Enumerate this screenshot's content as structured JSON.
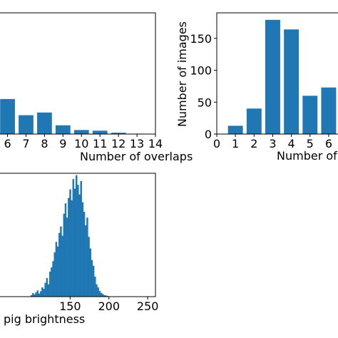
{
  "colors": {
    "bar": "#1f77b4",
    "axis": "#000000",
    "background": "#ffffff"
  },
  "chart_data": [
    {
      "id": "overlaps",
      "type": "bar",
      "xlabel": "Number of overlaps",
      "ylabel": "",
      "categories": [
        "6",
        "7",
        "8",
        "9",
        "10",
        "11",
        "12",
        "13",
        "14"
      ],
      "x": [
        6,
        7,
        8,
        9,
        10,
        11,
        12,
        13,
        14
      ],
      "values": [
        52,
        28,
        32,
        13,
        6,
        5,
        2,
        0.6,
        0
      ],
      "xlim": [
        5.4,
        14
      ],
      "ylim": [
        0,
        180
      ],
      "xticks": [
        "6",
        "7",
        "8",
        "9",
        "10",
        "11",
        "12",
        "13",
        "14"
      ],
      "grid": false
    },
    {
      "id": "images",
      "type": "bar",
      "xlabel": "Number of",
      "ylabel": "Number of images",
      "categories": [
        "0",
        "1",
        "2",
        "3",
        "4",
        "5",
        "6"
      ],
      "x": [
        0,
        1,
        2,
        3,
        4,
        5,
        6
      ],
      "values": [
        0,
        13,
        40,
        179,
        164,
        60,
        73
      ],
      "xlim": [
        0,
        6.5
      ],
      "ylim": [
        0,
        190
      ],
      "xticks": [
        "0",
        "1",
        "2",
        "3",
        "4",
        "5",
        "6"
      ],
      "yticks": [
        "0",
        "50",
        "100",
        "150"
      ],
      "grid": false
    },
    {
      "id": "brightness",
      "type": "bar",
      "xlabel": "pig brightness",
      "ylabel": "",
      "xlim": [
        55,
        260
      ],
      "ylim": [
        0,
        32
      ],
      "xticks": [
        "150",
        "200",
        "250"
      ],
      "grid": false,
      "x": [
        100,
        102,
        104,
        106,
        108,
        110,
        112,
        114,
        116,
        118,
        120,
        122,
        124,
        126,
        128,
        130,
        132,
        134,
        136,
        138,
        140,
        142,
        144,
        146,
        148,
        150,
        152,
        154,
        156,
        158,
        160,
        162,
        164,
        166,
        168,
        170,
        172,
        174,
        176,
        178,
        180,
        182,
        184,
        186,
        188,
        190,
        192,
        194,
        196,
        198
      ],
      "values": [
        0.4,
        0.9,
        0.6,
        1.1,
        1.6,
        0.8,
        1.4,
        2.4,
        2.0,
        3.6,
        4.8,
        3.2,
        6.5,
        7.6,
        9.2,
        11.5,
        14.2,
        13.0,
        16.5,
        18.2,
        15.8,
        21.5,
        24.2,
        20.5,
        25.6,
        27.8,
        25.0,
        30.5,
        28.0,
        31.5,
        29.0,
        26.5,
        30.0,
        24.5,
        22.0,
        18.5,
        20.5,
        15.5,
        12.5,
        9.5,
        8.0,
        5.2,
        3.2,
        2.4,
        1.5,
        1.0,
        0.7,
        0.4,
        0.3,
        0.2
      ]
    }
  ]
}
